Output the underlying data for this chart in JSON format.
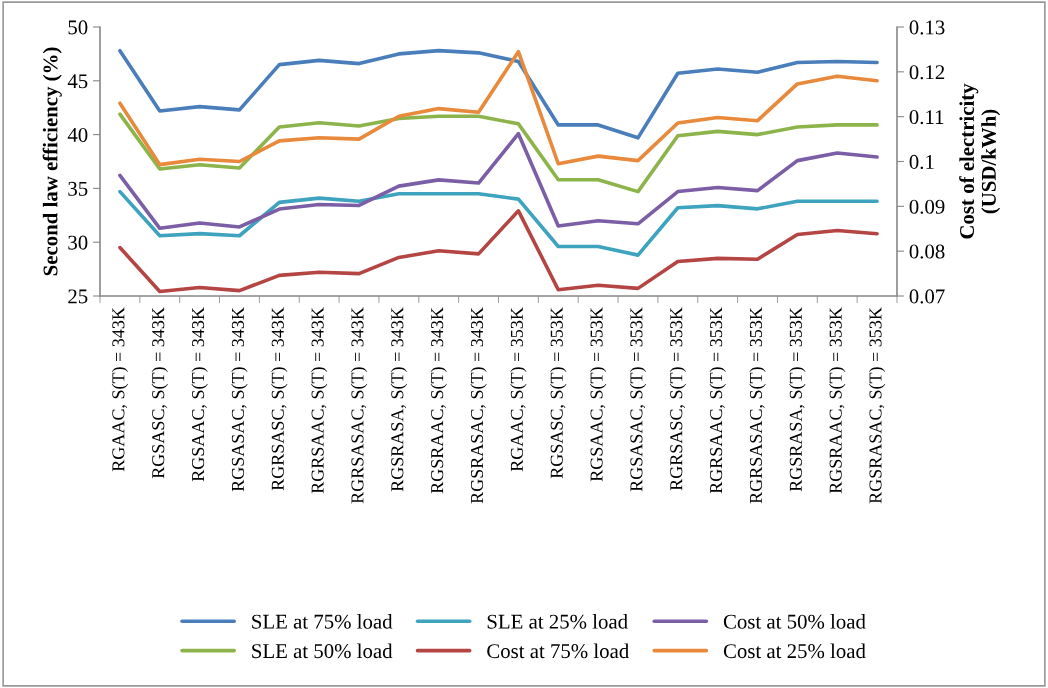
{
  "chart_data": {
    "type": "line",
    "ylabel": "Second law efficiency (%)",
    "y2label": "Cost of electricity\n(USD/kWh)",
    "categories": [
      "RGAAC, S(T) = 343K",
      "RGSASC, S(T) = 343K",
      "RGSAAC, S(T) = 343K",
      "RGSASAC, S(T) = 343K",
      "RGRSASC, S(T) = 343K",
      "RGRSAAC, S(T) = 343K",
      "RGRSASAC, S(T) = 343K",
      "RGSRASA, S(T) = 343K",
      "RGSRAAC, S(T) = 343K",
      "RGSRASAC, S(T) = 343K",
      "RGAAC, S(T) = 353K",
      "RGSASC, S(T) = 353K",
      "RGSAAC, S(T) = 353K",
      "RGSASAC, S(T) = 353K",
      "RGRSASC, S(T) = 353K",
      "RGRSAAC, S(T) = 353K",
      "RGRSASAC, S(T) = 353K",
      "RGSRASA, S(T) = 353K",
      "RGSRAAC, S(T) = 353K",
      "RGSRASAC, S(T) = 353K"
    ],
    "series": [
      {
        "name": "SLE at 75% load",
        "color": "#4a7ebb",
        "values": [
          47.8,
          42.2,
          42.6,
          42.3,
          46.5,
          46.9,
          46.6,
          47.5,
          47.8,
          47.6,
          46.8,
          40.9,
          40.9,
          39.7,
          45.7,
          46.1,
          45.8,
          46.7,
          46.8,
          46.7
        ]
      },
      {
        "name": "SLE at 50% load",
        "color": "#8cb44a",
        "values": [
          41.9,
          36.8,
          37.2,
          36.9,
          40.7,
          41.1,
          40.8,
          41.5,
          41.7,
          41.7,
          41.0,
          35.8,
          35.8,
          34.7,
          39.9,
          40.3,
          40.0,
          40.7,
          40.9,
          40.9
        ]
      },
      {
        "name": "SLE at 25% load",
        "color": "#3ea3be",
        "values": [
          34.7,
          30.6,
          30.8,
          30.6,
          33.7,
          34.1,
          33.8,
          34.5,
          34.5,
          34.5,
          34.0,
          29.6,
          29.6,
          28.8,
          33.2,
          33.4,
          33.1,
          33.8,
          33.8,
          33.8
        ]
      },
      {
        "name": "Cost at 75% load",
        "color": "#b54543",
        "axis": "y2",
        "values": [
          0.0808,
          0.071,
          0.0719,
          0.0712,
          0.0746,
          0.0753,
          0.075,
          0.0786,
          0.0801,
          0.0794,
          0.089,
          0.0714,
          0.0724,
          0.0717,
          0.0777,
          0.0784,
          0.0782,
          0.0837,
          0.0846,
          0.0839
        ]
      },
      {
        "name": "Cost at 50% load",
        "color": "#7b5ea6",
        "axis": "y2",
        "values": [
          0.0969,
          0.0851,
          0.0863,
          0.0854,
          0.0894,
          0.0904,
          0.0902,
          0.0945,
          0.0959,
          0.0952,
          0.1062,
          0.0856,
          0.0868,
          0.0861,
          0.0933,
          0.0942,
          0.0935,
          0.1002,
          0.1019,
          0.101
        ]
      },
      {
        "name": "Cost at 25% load",
        "color": "#e8893b",
        "axis": "y2",
        "values": [
          0.113,
          0.0993,
          0.1005,
          0.1,
          0.1046,
          0.1053,
          0.105,
          0.1101,
          0.1118,
          0.111,
          0.1245,
          0.0995,
          0.1012,
          0.1002,
          0.1086,
          0.1098,
          0.1091,
          0.1173,
          0.119,
          0.118
        ]
      }
    ],
    "ylim": [
      25,
      50
    ],
    "yticks": [
      25,
      30,
      35,
      40,
      45,
      50
    ],
    "y2lim": [
      0.07,
      0.13
    ],
    "y2ticks": [
      {
        "value": 0.07,
        "label": "0.07"
      },
      {
        "value": 0.08,
        "label": "0.08"
      },
      {
        "value": 0.09,
        "label": "0.09"
      },
      {
        "value": 0.1,
        "label": "0.1"
      },
      {
        "value": 0.11,
        "label": "0.11"
      },
      {
        "value": 0.12,
        "label": "0.12"
      },
      {
        "value": 0.13,
        "label": "0.13"
      }
    ],
    "grid": false,
    "legend": "bottom",
    "marker": "none",
    "line_style": "solid"
  }
}
